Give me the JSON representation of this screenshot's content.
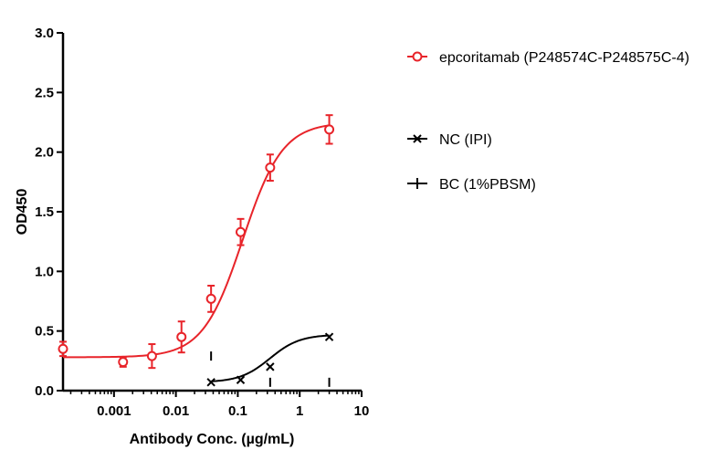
{
  "chart_data": {
    "type": "scatter",
    "title": "",
    "xlabel": "Antibody Conc. (µg/mL)",
    "ylabel": "OD450",
    "x_scale": "log",
    "xlim": [
      0.00015,
      10
    ],
    "ylim": [
      0,
      3
    ],
    "x_ticks": [
      0.001,
      0.01,
      0.1,
      1,
      10
    ],
    "x_tick_labels": [
      "0.001",
      "0.01",
      "0.1",
      "1",
      "10"
    ],
    "y_ticks": [
      0,
      0.5,
      1,
      1.5,
      2,
      2.5,
      3
    ],
    "y_tick_labels": [
      "0.0",
      "0.5",
      "1.0",
      "1.5",
      "2.0",
      "2.5",
      "3.0"
    ],
    "grid": false,
    "legend_position": "right",
    "series": [
      {
        "name": "epcoritamab (P248574C-P248575C-4)",
        "color": "#e8242a",
        "marker": "open-circle",
        "fit": "sigmoid",
        "fit_params": {
          "bottom": 0.28,
          "top": 2.25,
          "ec50": 0.12,
          "hill": 1.35
        },
        "points": [
          {
            "x": 0.00015,
            "y": 0.35,
            "err": 0.06
          },
          {
            "x": 0.0014,
            "y": 0.24,
            "err": 0.04
          },
          {
            "x": 0.0041,
            "y": 0.29,
            "err": 0.1
          },
          {
            "x": 0.0123,
            "y": 0.45,
            "err": 0.13
          },
          {
            "x": 0.037,
            "y": 0.77,
            "err": 0.11
          },
          {
            "x": 0.111,
            "y": 1.33,
            "err": 0.11
          },
          {
            "x": 0.333,
            "y": 1.87,
            "err": 0.11
          },
          {
            "x": 3.0,
            "y": 2.19,
            "err": 0.12
          }
        ]
      },
      {
        "name": "NC (IPI)",
        "color": "#000000",
        "marker": "x",
        "fit": "sigmoid",
        "fit_params": {
          "bottom": 0.07,
          "top": 0.47,
          "ec50": 0.33,
          "hill": 1.8
        },
        "points": [
          {
            "x": 0.037,
            "y": 0.07
          },
          {
            "x": 0.111,
            "y": 0.09
          },
          {
            "x": 0.333,
            "y": 0.2
          },
          {
            "x": 3.0,
            "y": 0.45
          }
        ]
      },
      {
        "name": "BC (1%PBSM)",
        "color": "#000000",
        "marker": "plus",
        "points": [
          {
            "x": 0.037,
            "y": 0.29
          },
          {
            "x": 0.333,
            "y": 0.07
          },
          {
            "x": 3.0,
            "y": 0.07
          }
        ]
      }
    ]
  }
}
